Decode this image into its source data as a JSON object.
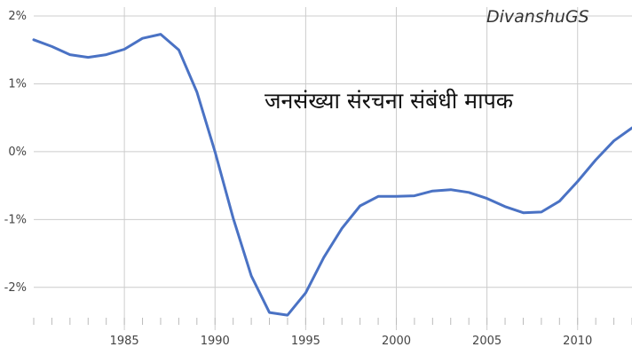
{
  "chart_data": {
    "type": "line",
    "title": "जनसंख्या संरचना संबंधी मापक",
    "watermark": "DivanshuGS",
    "xlabel": "",
    "ylabel": "",
    "x": [
      1980,
      1981,
      1982,
      1983,
      1984,
      1985,
      1986,
      1987,
      1988,
      1989,
      1990,
      1991,
      1992,
      1993,
      1994,
      1995,
      1996,
      1997,
      1998,
      1999,
      2000,
      2001,
      2002,
      2003,
      2004,
      2005,
      2006,
      2007,
      2008,
      2009,
      2010,
      2011,
      2012,
      2013
    ],
    "series": [
      {
        "name": "",
        "color": "#4a72c4",
        "values": [
          1.65,
          1.55,
          1.43,
          1.39,
          1.43,
          1.51,
          1.67,
          1.73,
          1.5,
          0.88,
          0.0,
          -0.98,
          -1.83,
          -2.37,
          -2.41,
          -2.08,
          -1.56,
          -1.13,
          -0.8,
          -0.66,
          -0.66,
          -0.65,
          -0.58,
          -0.56,
          -0.6,
          -0.69,
          -0.81,
          -0.9,
          -0.89,
          -0.73,
          -0.44,
          -0.12,
          0.16,
          0.35
        ]
      }
    ],
    "xlim": [
      1980,
      2013
    ],
    "ylim": [
      -2.5,
      2
    ],
    "yticks": [
      2,
      1,
      0,
      -1,
      -2
    ],
    "ytick_labels": [
      "2%",
      "1%",
      "0%",
      "-1%",
      "-2%"
    ],
    "xticks": [
      1985,
      1990,
      1995,
      2000,
      2005,
      2010
    ],
    "xtick_labels": [
      "1985",
      "1990",
      "1995",
      "2000",
      "2005",
      "2010"
    ],
    "grid": true,
    "colors": {
      "line": "#4a72c4",
      "grid": "#cccccc",
      "axis": "#bbbbbb"
    }
  }
}
